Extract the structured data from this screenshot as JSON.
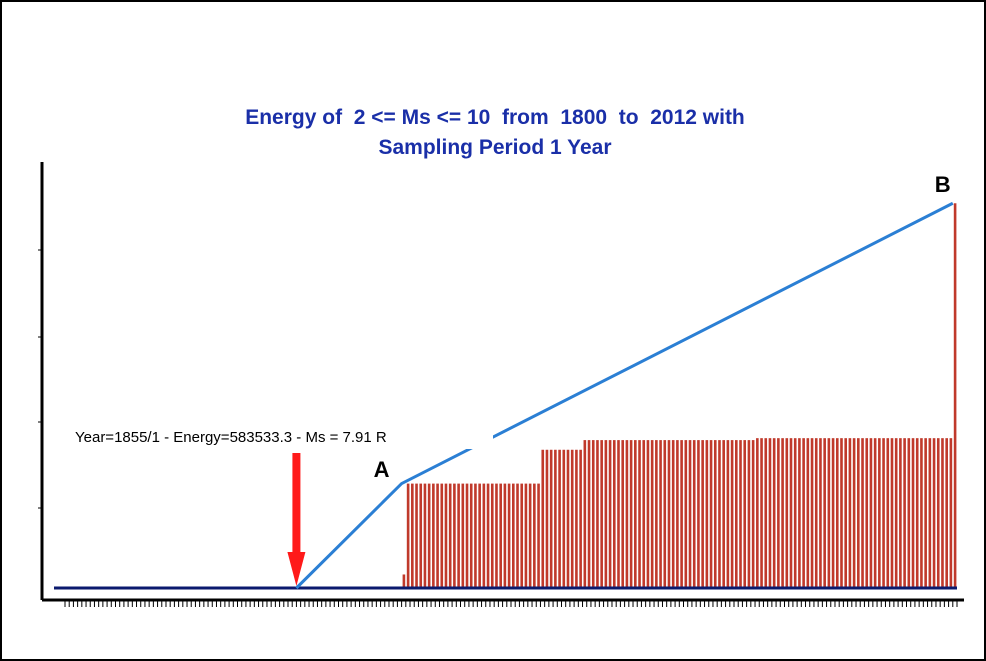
{
  "chart_data": {
    "type": "bar",
    "title": "Energy of  2 <= Ms <= 10  from  1800  to  2012 with",
    "subtitle": "Sampling Period 1 Year",
    "xlabel": "",
    "ylabel": "",
    "x_range": [
      1800,
      2012
    ],
    "x_unit": "year",
    "grid": false,
    "legend": "none",
    "series": [
      {
        "kind": "bar",
        "color": "#c0392b",
        "x_start": 1880,
        "segments": [
          {
            "from": 1880,
            "to": 1880,
            "value": 0.14
          },
          {
            "from": 1881,
            "to": 1912,
            "value": 1.08
          },
          {
            "from": 1913,
            "to": 1922,
            "value": 1.43
          },
          {
            "from": 1923,
            "to": 1963,
            "value": 1.53
          },
          {
            "from": 1964,
            "to": 2010,
            "value": 1.55
          },
          {
            "from": 2011,
            "to": 2011,
            "value": 3.98
          }
        ]
      },
      {
        "kind": "line",
        "color": "#2b7fd4",
        "points": [
          [
            1855,
            0
          ],
          [
            1880,
            1.08
          ],
          [
            2011,
            3.98
          ]
        ]
      }
    ],
    "baseline": {
      "color": "#0b1a6e"
    },
    "annotations": [
      {
        "text": "Year=1855/1 - Energy=583533.3 - Ms = 7.91 R",
        "x": 1855,
        "arrow_color": "#ff1a1a"
      },
      {
        "text": "A",
        "x": 1880
      },
      {
        "text": "B",
        "x": 2011
      }
    ],
    "ylim": [
      0,
      4.2
    ]
  }
}
